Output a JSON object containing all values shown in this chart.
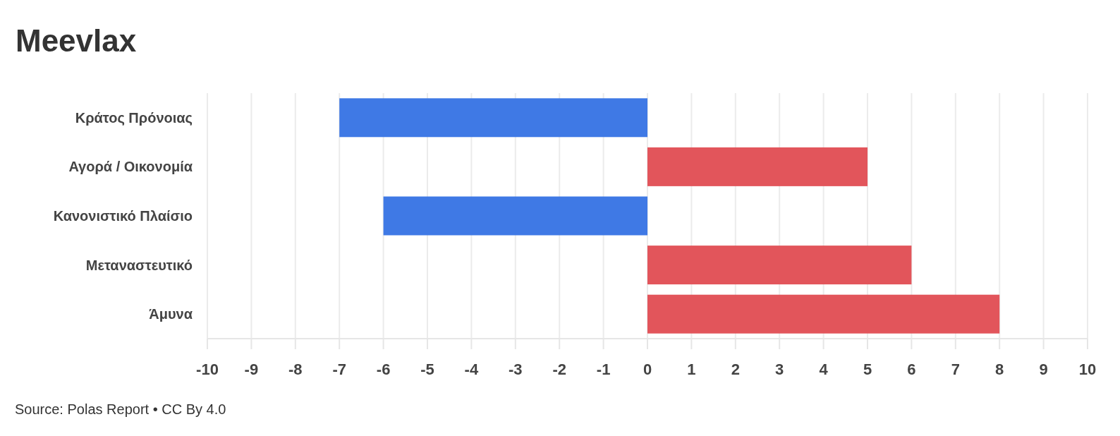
{
  "chart_data": {
    "type": "bar",
    "orientation": "horizontal",
    "title": "Meevlax",
    "categories": [
      "Κράτος Πρόνοιας",
      "Αγορά / Οικονομία",
      "Κανονιστικό Πλαίσιο",
      "Μεταναστευτικό",
      "Άμυνα"
    ],
    "values": [
      -7,
      5,
      -6,
      6,
      8
    ],
    "colors": [
      "#3f79e5",
      "#e2555b",
      "#3f79e5",
      "#e2555b",
      "#e2555b"
    ],
    "xlim": [
      -10,
      10
    ],
    "xticks": [
      -10,
      -9,
      -8,
      -7,
      -6,
      -5,
      -4,
      -3,
      -2,
      -1,
      0,
      1,
      2,
      3,
      4,
      5,
      6,
      7,
      8,
      9,
      10
    ],
    "grid": "x",
    "annotations": [
      "Source: Polas Report • CC By 4.0"
    ]
  }
}
